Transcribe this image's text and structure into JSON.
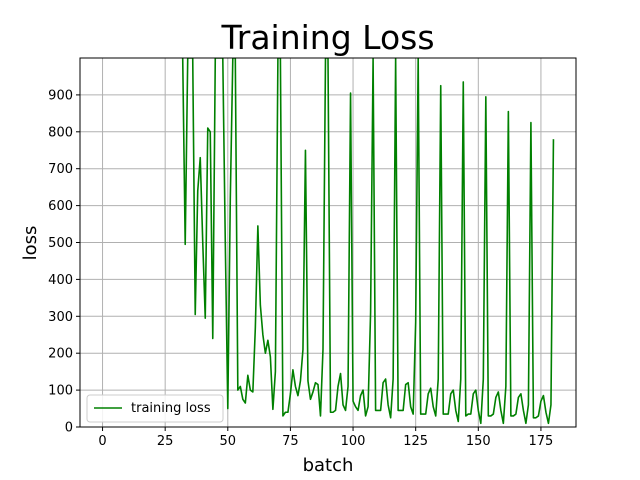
{
  "chart_data": {
    "type": "line",
    "title": "Training Loss",
    "xlabel": "batch",
    "ylabel": "loss",
    "xlim": [
      -9,
      189
    ],
    "ylim": [
      0,
      1000
    ],
    "xticks": [
      0,
      25,
      50,
      75,
      100,
      125,
      150,
      175
    ],
    "yticks": [
      0,
      100,
      200,
      300,
      400,
      500,
      600,
      700,
      800,
      900
    ],
    "grid": true,
    "legend_position": "lower left",
    "colors": {
      "series": "#008000",
      "grid": "#b0b0b0"
    },
    "series": [
      {
        "name": "training loss",
        "x": [
          32,
          33,
          34,
          35,
          36,
          37,
          38,
          39,
          40,
          41,
          42,
          43,
          44,
          45,
          46,
          47,
          48,
          49,
          50,
          51,
          52,
          53,
          54,
          55,
          56,
          57,
          58,
          59,
          60,
          61,
          62,
          63,
          64,
          65,
          66,
          67,
          68,
          69,
          70,
          71,
          72,
          73,
          74,
          75,
          76,
          77,
          78,
          79,
          80,
          81,
          82,
          83,
          84,
          85,
          86,
          87,
          88,
          89,
          90,
          91,
          92,
          93,
          94,
          95,
          96,
          97,
          98,
          99,
          100,
          101,
          102,
          103,
          104,
          105,
          106,
          107,
          108,
          109,
          110,
          111,
          112,
          113,
          114,
          115,
          116,
          117,
          118,
          119,
          120,
          121,
          122,
          123,
          124,
          125,
          126,
          127,
          128,
          129,
          130,
          131,
          132,
          133,
          134,
          135,
          136,
          137,
          138,
          139,
          140,
          141,
          142,
          143,
          144,
          145,
          146,
          147,
          148,
          149,
          150,
          151,
          152,
          153,
          154,
          155,
          156,
          157,
          158,
          159,
          160,
          161,
          162,
          163,
          164,
          165,
          166,
          167,
          168,
          169,
          170,
          171,
          172,
          173,
          174,
          175,
          176,
          177,
          178,
          179,
          180
        ],
        "y": [
          1000,
          495,
          1000,
          1000,
          1000,
          305,
          640,
          730,
          500,
          295,
          810,
          800,
          240,
          1000,
          1000,
          1000,
          1000,
          500,
          50,
          620,
          1000,
          1000,
          100,
          110,
          75,
          65,
          140,
          100,
          95,
          270,
          545,
          330,
          250,
          200,
          235,
          190,
          48,
          150,
          1000,
          1000,
          30,
          40,
          40,
          90,
          155,
          110,
          85,
          125,
          210,
          750,
          125,
          75,
          95,
          120,
          115,
          30,
          210,
          1000,
          1000,
          40,
          40,
          45,
          110,
          145,
          60,
          45,
          110,
          905,
          70,
          55,
          45,
          85,
          100,
          30,
          55,
          310,
          1000,
          45,
          45,
          45,
          120,
          130,
          60,
          25,
          130,
          1000,
          45,
          45,
          45,
          115,
          120,
          55,
          35,
          285,
          1000,
          35,
          35,
          35,
          90,
          105,
          55,
          30,
          130,
          925,
          35,
          35,
          35,
          90,
          100,
          45,
          15,
          130,
          935,
          30,
          35,
          35,
          90,
          100,
          45,
          10,
          130,
          895,
          30,
          30,
          35,
          80,
          95,
          45,
          10,
          110,
          855,
          30,
          30,
          35,
          80,
          90,
          45,
          10,
          60,
          825,
          25,
          25,
          30,
          70,
          85,
          40,
          10,
          60,
          780
        ]
      }
    ]
  }
}
